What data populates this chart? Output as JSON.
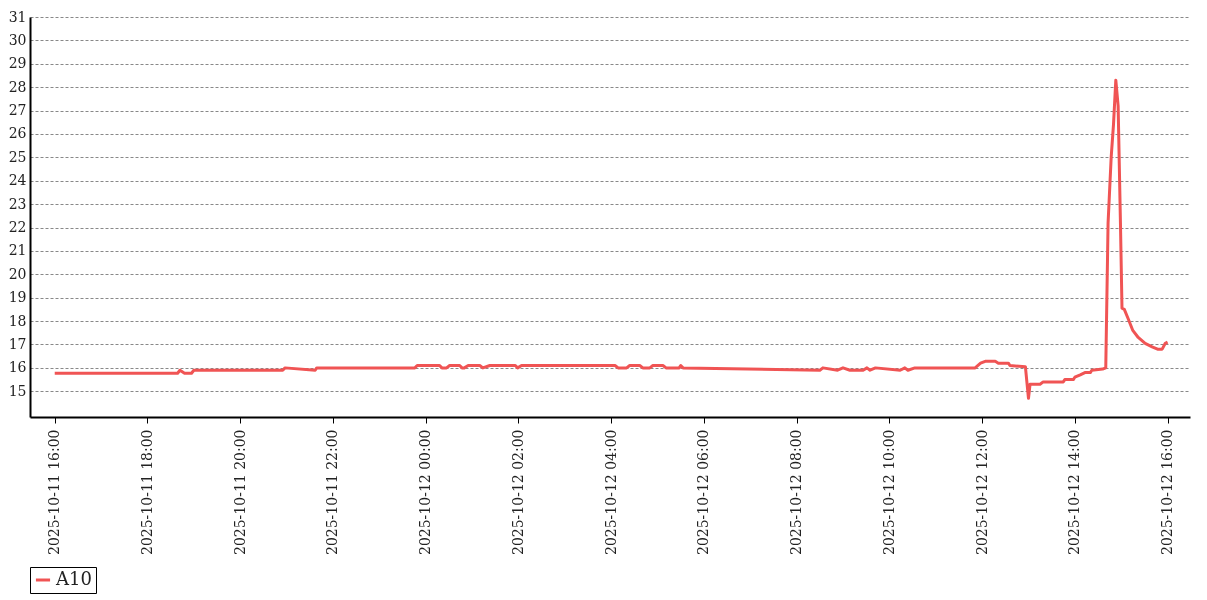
{
  "chart_data": {
    "type": "line",
    "legend": "bottom",
    "grid": "y",
    "xlim": [
      "2025-10-11T15:28",
      "2025-10-12T16:29"
    ],
    "ylim": [
      13.9,
      31
    ],
    "yticks": [
      15,
      16,
      17,
      18,
      19,
      20,
      21,
      22,
      23,
      24,
      25,
      26,
      27,
      28,
      29,
      30,
      31
    ],
    "xticks": [
      {
        "value": "2025-10-11T16:00",
        "label": "2025-10-11  16:00"
      },
      {
        "value": "2025-10-11T18:00",
        "label": "2025-10-11  18:00"
      },
      {
        "value": "2025-10-11T20:00",
        "label": "2025-10-11  20:00"
      },
      {
        "value": "2025-10-11T22:00",
        "label": "2025-10-11  22:00"
      },
      {
        "value": "2025-10-12T00:00",
        "label": "2025-10-12  00:00"
      },
      {
        "value": "2025-10-12T02:00",
        "label": "2025-10-12  02:00"
      },
      {
        "value": "2025-10-12T04:00",
        "label": "2025-10-12  04:00"
      },
      {
        "value": "2025-10-12T06:00",
        "label": "2025-10-12  06:00"
      },
      {
        "value": "2025-10-12T08:00",
        "label": "2025-10-12  08:00"
      },
      {
        "value": "2025-10-12T10:00",
        "label": "2025-10-12  10:00"
      },
      {
        "value": "2025-10-12T12:00",
        "label": "2025-10-12  12:00"
      },
      {
        "value": "2025-10-12T14:00",
        "label": "2025-10-12  14:00"
      },
      {
        "value": "2025-10-12T16:00",
        "label": "2025-10-12  16:00"
      }
    ],
    "x": [
      "2025-10-11T16:00",
      "2025-10-11T18:39",
      "2025-10-11T18:42",
      "2025-10-11T18:48",
      "2025-10-11T18:57",
      "2025-10-11T19:00",
      "2025-10-11T20:55",
      "2025-10-11T20:58",
      "2025-10-11T21:37",
      "2025-10-11T21:39",
      "2025-10-11T23:46",
      "2025-10-11T23:49",
      "2025-10-12T00:06",
      "2025-10-12T00:18",
      "2025-10-12T00:21",
      "2025-10-12T00:27",
      "2025-10-12T00:31",
      "2025-10-12T00:44",
      "2025-10-12T00:47",
      "2025-10-12T00:50",
      "2025-10-12T00:55",
      "2025-10-12T01:10",
      "2025-10-12T01:14",
      "2025-10-12T01:23",
      "2025-10-12T01:56",
      "2025-10-12T01:59",
      "2025-10-12T02:04",
      "2025-10-12T04:05",
      "2025-10-12T04:09",
      "2025-10-12T04:20",
      "2025-10-12T04:24",
      "2025-10-12T04:37",
      "2025-10-12T04:41",
      "2025-10-12T04:50",
      "2025-10-12T04:54",
      "2025-10-12T05:07",
      "2025-10-12T05:11",
      "2025-10-12T05:28",
      "2025-10-12T05:30",
      "2025-10-12T05:33",
      "2025-10-12T08:30",
      "2025-10-12T08:34",
      "2025-10-12T08:53",
      "2025-10-12T09:00",
      "2025-10-12T09:09",
      "2025-10-12T09:26",
      "2025-10-12T09:31",
      "2025-10-12T09:35",
      "2025-10-12T09:42",
      "2025-10-12T10:14",
      "2025-10-12T10:20",
      "2025-10-12T10:24",
      "2025-10-12T10:33",
      "2025-10-12T11:51",
      "2025-10-12T11:58",
      "2025-10-12T12:04",
      "2025-10-12T12:17",
      "2025-10-12T12:21",
      "2025-10-12T12:34",
      "2025-10-12T12:36",
      "2025-10-12T12:56",
      "2025-10-12T13:00",
      "2025-10-12T13:02",
      "2025-10-12T13:15",
      "2025-10-12T13:19",
      "2025-10-12T13:45",
      "2025-10-12T13:47",
      "2025-10-12T13:58",
      "2025-10-12T14:00",
      "2025-10-12T14:07",
      "2025-10-12T14:13",
      "2025-10-12T14:20",
      "2025-10-12T14:22",
      "2025-10-12T14:36",
      "2025-10-12T14:40",
      "2025-10-12T14:43",
      "2025-10-12T14:47",
      "2025-10-12T14:50",
      "2025-10-12T14:53",
      "2025-10-12T14:56",
      "2025-10-12T14:59",
      "2025-10-12T15:01",
      "2025-10-12T15:04",
      "2025-10-12T15:09",
      "2025-10-12T15:15",
      "2025-10-12T15:22",
      "2025-10-12T15:31",
      "2025-10-12T15:40",
      "2025-10-12T15:47",
      "2025-10-12T15:53",
      "2025-10-12T15:57",
      "2025-10-12T16:00"
    ],
    "series": [
      {
        "name": "A10",
        "color": "#f05454",
        "values": [
          15.77,
          15.77,
          15.9,
          15.77,
          15.77,
          15.9,
          15.9,
          16.0,
          15.9,
          16.0,
          16.0,
          16.1,
          16.1,
          16.1,
          16.0,
          16.0,
          16.1,
          16.1,
          16.0,
          16.0,
          16.1,
          16.1,
          16.0,
          16.1,
          16.1,
          16.0,
          16.1,
          16.1,
          16.0,
          16.0,
          16.1,
          16.1,
          16.0,
          16.0,
          16.1,
          16.1,
          16.0,
          16.0,
          16.1,
          16.0,
          15.9,
          16.0,
          15.9,
          16.0,
          15.9,
          15.9,
          16.0,
          15.9,
          16.0,
          15.9,
          16.0,
          15.9,
          16.0,
          16.0,
          16.2,
          16.28,
          16.28,
          16.2,
          16.2,
          16.1,
          16.05,
          14.7,
          15.3,
          15.3,
          15.4,
          15.4,
          15.5,
          15.5,
          15.6,
          15.7,
          15.8,
          15.8,
          15.9,
          15.95,
          16.0,
          22.2,
          25.0,
          26.4,
          28.3,
          27.2,
          22.2,
          18.55,
          18.5,
          18.1,
          17.6,
          17.3,
          17.05,
          16.9,
          16.8,
          16.8,
          17.05,
          17.1
        ]
      }
    ]
  }
}
